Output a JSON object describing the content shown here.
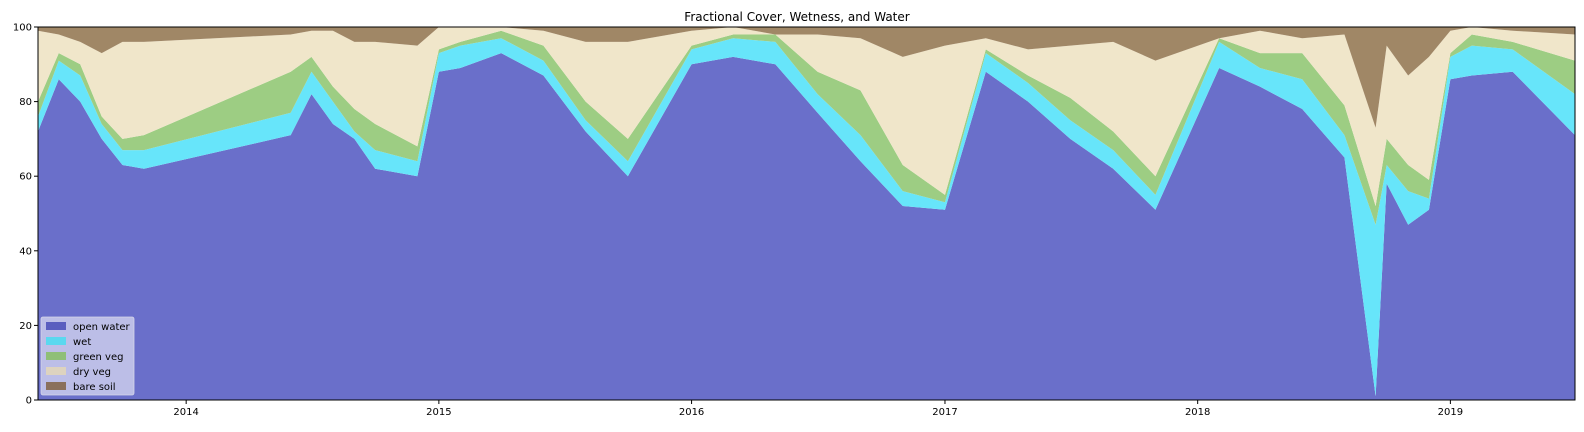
{
  "chart_data": {
    "type": "area",
    "stacked": true,
    "title": "Fractional Cover, Wetness, and Water",
    "xlabel": "",
    "ylabel": "",
    "ylim": [
      0,
      100
    ],
    "xlim": [
      "2013-06-01",
      "2019-06-30"
    ],
    "y_ticks": [
      0,
      20,
      40,
      60,
      80,
      100
    ],
    "x_ticks": [
      {
        "label": "2014",
        "date": "2014-01-01"
      },
      {
        "label": "2015",
        "date": "2015-01-01"
      },
      {
        "label": "2016",
        "date": "2016-01-01"
      },
      {
        "label": "2017",
        "date": "2017-01-01"
      },
      {
        "label": "2018",
        "date": "2018-01-01"
      },
      {
        "label": "2019",
        "date": "2019-01-01"
      }
    ],
    "grid": false,
    "legend_position": "lower-left",
    "x": [
      "2013-06-01",
      "2013-07-01",
      "2013-08-01",
      "2013-09-01",
      "2013-10-01",
      "2013-11-01",
      "2014-06-01",
      "2014-07-01",
      "2014-08-01",
      "2014-09-01",
      "2014-10-01",
      "2014-12-01",
      "2015-01-01",
      "2015-02-01",
      "2015-04-01",
      "2015-06-01",
      "2015-08-01",
      "2015-10-01",
      "2016-01-01",
      "2016-03-01",
      "2016-05-01",
      "2016-07-01",
      "2016-09-01",
      "2016-11-01",
      "2017-01-01",
      "2017-03-01",
      "2017-05-01",
      "2017-07-01",
      "2017-09-01",
      "2017-11-01",
      "2018-02-01",
      "2018-04-01",
      "2018-06-01",
      "2018-08-01",
      "2018-09-15",
      "2018-10-01",
      "2018-11-01",
      "2018-12-01",
      "2019-01-01",
      "2019-02-01",
      "2019-04-01",
      "2019-06-30"
    ],
    "series": [
      {
        "name": "open water",
        "color": "#6a6fca",
        "values": [
          72,
          86,
          80,
          70,
          63,
          62,
          71,
          82,
          74,
          70,
          62,
          60,
          88,
          89,
          93,
          87,
          72,
          60,
          90,
          92,
          90,
          77,
          64,
          52,
          51,
          88,
          80,
          70,
          62,
          51,
          89,
          84,
          78,
          65,
          1,
          58,
          47,
          51,
          86,
          87,
          88,
          71
        ]
      },
      {
        "name": "wet",
        "color": "#67e5fa",
        "values": [
          4,
          5,
          7,
          4,
          4,
          5,
          6,
          6,
          6,
          2,
          5,
          4,
          5,
          6,
          4,
          4,
          3,
          4,
          4,
          5,
          6,
          5,
          7,
          4,
          2,
          5,
          5,
          5,
          5,
          4,
          7,
          5,
          8,
          6,
          46,
          5,
          9,
          3,
          6,
          8,
          6,
          11
        ]
      },
      {
        "name": "green veg",
        "color": "#9dcd83",
        "values": [
          4,
          2,
          3,
          2,
          3,
          4,
          11,
          4,
          4,
          6,
          7,
          4,
          1,
          1,
          2,
          4,
          5,
          6,
          1,
          1,
          2,
          6,
          12,
          7,
          2,
          1,
          2,
          6,
          5,
          5,
          1,
          4,
          7,
          8,
          5,
          7,
          7,
          5,
          1,
          3,
          2,
          9
        ]
      },
      {
        "name": "dry veg",
        "color": "#f0e6ca",
        "values": [
          19,
          5,
          6,
          17,
          26,
          25,
          10,
          7,
          15,
          18,
          22,
          27,
          6,
          4,
          1,
          4,
          16,
          26,
          4,
          2,
          0,
          10,
          14,
          29,
          40,
          3,
          7,
          14,
          24,
          31,
          0,
          6,
          4,
          19,
          21,
          25,
          24,
          33,
          6,
          2,
          3,
          7
        ]
      },
      {
        "name": "bare soil",
        "color": "#a08766",
        "values": [
          1,
          2,
          4,
          7,
          4,
          4,
          2,
          1,
          1,
          4,
          4,
          5,
          0,
          0,
          0,
          1,
          4,
          4,
          1,
          0,
          2,
          2,
          3,
          8,
          5,
          3,
          6,
          5,
          4,
          9,
          3,
          1,
          3,
          2,
          27,
          5,
          13,
          8,
          1,
          0,
          1,
          2
        ]
      }
    ],
    "legend_labels": [
      "open water",
      "wet",
      "green veg",
      "dry veg",
      "bare soil"
    ]
  }
}
